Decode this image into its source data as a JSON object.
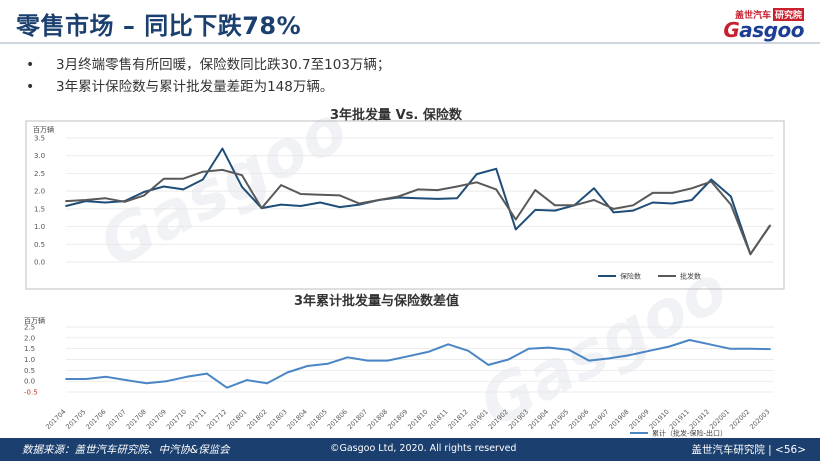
{
  "header": {
    "title": "零售市场 – 同比下跌78%",
    "logo_cn": "盖世汽车",
    "logo_badge": "研究院",
    "logo_main_1": "G",
    "logo_main_2": "asgoo"
  },
  "bullets": [
    "3月终端零售有所回暖，保险数同比跌30.7至103万辆；",
    "3年累计保险数与累计批发量差距为148万辆。"
  ],
  "footer": {
    "source": "数据来源：盖世汽车研究院、中汽协&保监会",
    "copyright": "©Gasgoo Ltd, 2020.  All rights reserved",
    "org": "盖世汽车研究院 | <56>"
  },
  "chart_data": [
    {
      "type": "line",
      "title": "3年批发量 Vs. 保险数",
      "ylabel": "百万辆",
      "ylim": [
        0,
        3.5
      ],
      "yticks": [
        "0.0",
        "0.5",
        "1.0",
        "1.5",
        "2.0",
        "2.5",
        "3.0",
        "3.5"
      ],
      "legend_position": "bottom-right",
      "series": [
        {
          "name": "保险数",
          "color": "#1f4e79",
          "values": [
            1.58,
            1.72,
            1.68,
            1.72,
            1.98,
            2.13,
            2.05,
            2.33,
            3.2,
            2.12,
            1.52,
            1.62,
            1.58,
            1.68,
            1.55,
            1.62,
            1.75,
            1.82,
            1.8,
            1.78,
            1.8,
            2.48,
            2.63,
            0.92,
            1.47,
            1.45,
            1.6,
            2.08,
            1.4,
            1.45,
            1.68,
            1.65,
            1.75,
            2.33,
            1.85,
            0.22,
            1.03
          ]
        },
        {
          "name": "批发数",
          "color": "#595959",
          "values": [
            1.72,
            1.75,
            1.8,
            1.7,
            1.88,
            2.35,
            2.35,
            2.55,
            2.6,
            2.45,
            1.52,
            2.17,
            1.92,
            1.9,
            1.88,
            1.65,
            1.75,
            1.85,
            2.05,
            2.03,
            2.13,
            2.25,
            2.05,
            1.2,
            2.03,
            1.6,
            1.6,
            1.75,
            1.5,
            1.6,
            1.95,
            1.95,
            2.08,
            2.27,
            1.62,
            0.22,
            1.03
          ]
        }
      ]
    },
    {
      "type": "line",
      "title": "3年累计批发量与保险数差值",
      "ylabel": "百万辆",
      "ylim": [
        -0.5,
        2.5
      ],
      "yticks": [
        "-0.5",
        "0.0",
        "0.5",
        "1.0",
        "1.5",
        "2.0",
        "2.5"
      ],
      "legend_position": "bottom-right",
      "categories": [
        "201704",
        "201705",
        "201706",
        "201707",
        "201708",
        "201709",
        "201710",
        "201711",
        "201712",
        "201801",
        "201802",
        "201803",
        "201804",
        "201805",
        "201806",
        "201807",
        "201808",
        "201809",
        "201810",
        "201811",
        "201812",
        "201901",
        "201902",
        "201903",
        "201904",
        "201905",
        "201906",
        "201907",
        "201908",
        "201909",
        "201910",
        "201911",
        "201912",
        "202001",
        "202002",
        "202003"
      ],
      "series": [
        {
          "name": "累计（批发-保险-出口）",
          "color": "#4a86c5",
          "values": [
            0.1,
            0.1,
            0.2,
            0.05,
            -0.1,
            0.0,
            0.2,
            0.35,
            -0.3,
            0.05,
            -0.1,
            0.4,
            0.7,
            0.8,
            1.1,
            0.95,
            0.95,
            1.15,
            1.35,
            1.7,
            1.4,
            0.75,
            1.0,
            1.5,
            1.55,
            1.45,
            0.95,
            1.05,
            1.2,
            1.4,
            1.6,
            1.9,
            1.7,
            1.5,
            1.5,
            1.48
          ]
        }
      ]
    }
  ]
}
